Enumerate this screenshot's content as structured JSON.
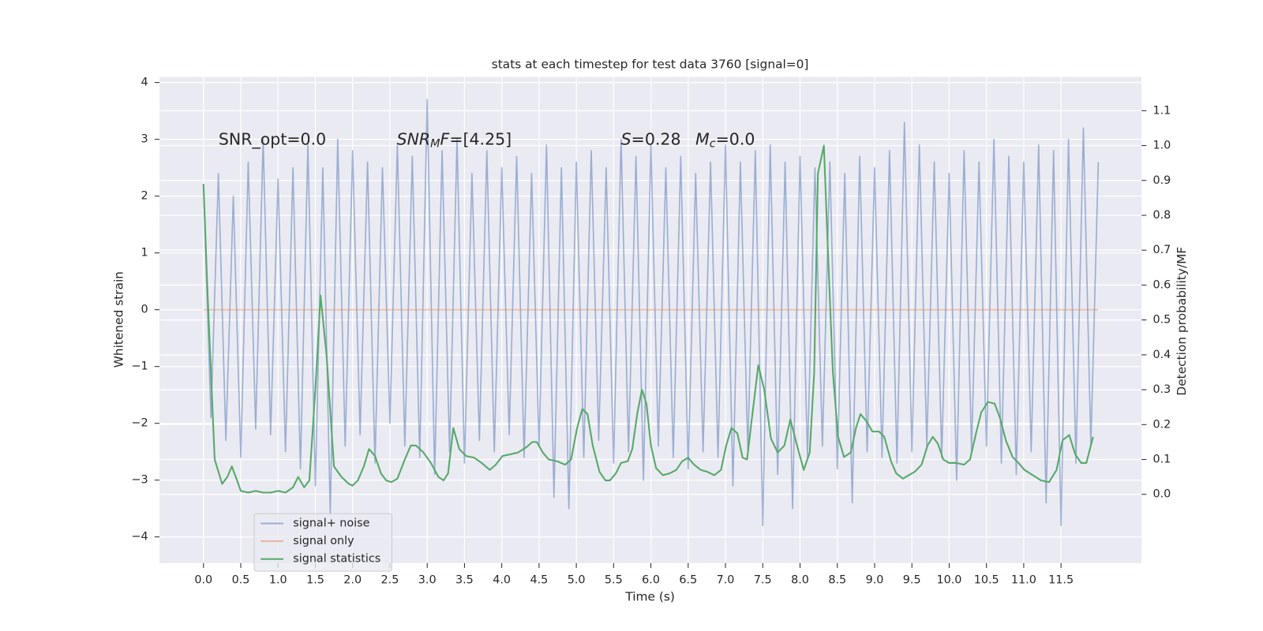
{
  "chart_data": {
    "type": "line",
    "title": "stats at each timestep for test data 3760 [signal=0]",
    "xlabel": "Time (s)",
    "ylabel": "Whitened strain",
    "y2label": "Detection probability/MF",
    "xlim": [
      -0.59,
      12.58
    ],
    "ylim": [
      -4.46,
      4.1
    ],
    "y2lim": [
      -0.197,
      1.197
    ],
    "xticks": [
      {
        "value": 0,
        "label": "0.0"
      },
      0.5,
      {
        "value": 1,
        "label": "1.0"
      },
      1.5,
      {
        "value": 2,
        "label": "2.0"
      },
      2.5,
      {
        "value": 3,
        "label": "3.0"
      },
      3.5,
      {
        "value": 4,
        "label": "4.0"
      },
      4.5,
      {
        "value": 5,
        "label": "5.0"
      },
      5.5,
      {
        "value": 6,
        "label": "6.0"
      },
      6.5,
      {
        "value": 7,
        "label": "7.0"
      },
      7.5,
      {
        "value": 8,
        "label": "8.0"
      },
      8.5,
      {
        "value": 9,
        "label": "9.0"
      },
      9.5,
      {
        "value": 10,
        "label": "10.0"
      },
      10.5,
      {
        "value": 11,
        "label": "11.0"
      },
      11.5
    ],
    "yticks": [
      {
        "value": -4,
        "label": "−4"
      },
      {
        "value": -3,
        "label": "−3"
      },
      {
        "value": -2,
        "label": "−2"
      },
      {
        "value": -1,
        "label": "−1"
      },
      0,
      1,
      2,
      3,
      4
    ],
    "y2ticks": [
      {
        "value": 0,
        "label": "0.0"
      },
      0.1,
      0.2,
      0.3,
      0.4,
      0.5,
      0.6,
      0.7,
      0.8,
      0.9,
      {
        "value": 1,
        "label": "1.0"
      },
      1.1
    ],
    "grid": true,
    "legend": "lower left",
    "annotations": [
      {
        "parts": [
          {
            "text": "SNR_opt=0.0",
            "style": "normal"
          }
        ]
      },
      {
        "parts": [
          {
            "text": "SNR",
            "style": "italic"
          },
          {
            "text": "M",
            "style": "italic-sub"
          },
          {
            "text": "F",
            "style": "italic"
          },
          {
            "text": "=[4.25]",
            "style": "normal"
          }
        ]
      },
      {
        "parts": [
          {
            "text": "S",
            "style": "italic"
          },
          {
            "text": "=0.28",
            "style": "normal"
          }
        ]
      },
      {
        "parts": [
          {
            "text": "M",
            "style": "italic"
          },
          {
            "text": "c",
            "style": "italic-sub"
          },
          {
            "text": "=0.0",
            "style": "normal"
          }
        ]
      }
    ],
    "series": [
      {
        "name": "signal+ noise",
        "color": "#4c72b0",
        "opacity": 0.5,
        "x": [
          0.0,
          0.1,
          0.2,
          0.3,
          0.4,
          0.5,
          0.6,
          0.7,
          0.8,
          0.9,
          1.0,
          1.1,
          1.2,
          1.3,
          1.4,
          1.5,
          1.6,
          1.7,
          1.8,
          1.9,
          2.0,
          2.1,
          2.2,
          2.3,
          2.4,
          2.5,
          2.6,
          2.7,
          2.8,
          2.9,
          3.0,
          3.1,
          3.2,
          3.3,
          3.4,
          3.5,
          3.6,
          3.7,
          3.8,
          3.9,
          4.0,
          4.1,
          4.2,
          4.3,
          4.4,
          4.5,
          4.6,
          4.7,
          4.8,
          4.9,
          5.0,
          5.1,
          5.2,
          5.3,
          5.4,
          5.5,
          5.6,
          5.7,
          5.8,
          5.9,
          6.0,
          6.1,
          6.2,
          6.3,
          6.4,
          6.5,
          6.6,
          6.7,
          6.8,
          6.9,
          7.0,
          7.1,
          7.2,
          7.3,
          7.4,
          7.5,
          7.6,
          7.7,
          7.8,
          7.9,
          8.0,
          8.1,
          8.2,
          8.3,
          8.4,
          8.5,
          8.6,
          8.7,
          8.8,
          8.9,
          9.0,
          9.1,
          9.2,
          9.3,
          9.4,
          9.5,
          9.6,
          9.7,
          9.8,
          9.9,
          10.0,
          10.1,
          10.2,
          10.3,
          10.4,
          10.5,
          10.6,
          10.7,
          10.8,
          10.9,
          11.0,
          11.1,
          11.2,
          11.3,
          11.4,
          11.5,
          11.6,
          11.7,
          11.8,
          11.9,
          12.0
        ],
        "values": [
          2.2,
          -1.9,
          2.4,
          -2.3,
          2.0,
          -2.6,
          2.6,
          -2.1,
          3.0,
          -2.2,
          2.3,
          -2.5,
          2.5,
          -2.8,
          2.9,
          -3.1,
          2.5,
          -3.6,
          3.0,
          -2.4,
          2.8,
          -2.2,
          2.6,
          -2.7,
          2.5,
          -2.0,
          2.9,
          -2.4,
          2.7,
          -2.6,
          3.7,
          -2.9,
          2.8,
          -2.5,
          3.0,
          -2.7,
          2.4,
          -2.3,
          2.8,
          -2.5,
          2.5,
          -2.2,
          2.7,
          -2.6,
          2.4,
          -2.4,
          2.9,
          -3.3,
          2.5,
          -3.5,
          2.6,
          -2.6,
          2.8,
          -2.3,
          2.5,
          -2.7,
          3.0,
          -2.5,
          2.7,
          -3.0,
          2.9,
          -2.4,
          2.5,
          -2.6,
          2.7,
          -2.8,
          2.4,
          -2.5,
          2.6,
          -2.6,
          2.9,
          -3.1,
          2.6,
          -2.5,
          2.8,
          -3.8,
          2.9,
          -2.9,
          2.6,
          -3.5,
          2.7,
          -2.6,
          2.5,
          -2.4,
          2.6,
          -2.8,
          2.4,
          -3.4,
          2.7,
          -2.5,
          2.5,
          -2.6,
          2.8,
          -2.7,
          3.3,
          -2.5,
          2.9,
          -2.4,
          2.6,
          -2.6,
          2.4,
          -3.0,
          2.8,
          -2.5,
          2.6,
          -2.4,
          3.0,
          -2.7,
          2.7,
          -2.9,
          2.6,
          -2.5,
          2.9,
          -3.4,
          2.8,
          -3.8,
          3.0,
          -2.7,
          3.2,
          -2.4,
          2.6
        ]
      },
      {
        "name": "signal only",
        "color": "#dd8452",
        "opacity": 0.5,
        "x": [
          0.0,
          12.0
        ],
        "values": [
          0,
          0
        ]
      },
      {
        "name": "signal statistics",
        "color": "#55a868",
        "opacity": 1,
        "axis": "y2",
        "x": [
          0.0,
          0.05,
          0.1,
          0.15,
          0.25,
          0.32,
          0.38,
          0.45,
          0.5,
          0.6,
          0.7,
          0.8,
          0.9,
          1.0,
          1.1,
          1.2,
          1.27,
          1.35,
          1.42,
          1.5,
          1.57,
          1.65,
          1.75,
          1.85,
          1.95,
          2.0,
          2.07,
          2.15,
          2.22,
          2.3,
          2.38,
          2.45,
          2.52,
          2.6,
          2.7,
          2.78,
          2.85,
          2.95,
          3.05,
          3.15,
          3.22,
          3.28,
          3.35,
          3.43,
          3.52,
          3.63,
          3.73,
          3.84,
          3.92,
          4.01,
          4.12,
          4.22,
          4.33,
          4.41,
          4.47,
          4.55,
          4.63,
          4.74,
          4.85,
          4.93,
          5.01,
          5.08,
          5.15,
          5.22,
          5.31,
          5.39,
          5.45,
          5.53,
          5.6,
          5.69,
          5.75,
          5.82,
          5.88,
          5.94,
          6.0,
          6.07,
          6.16,
          6.25,
          6.34,
          6.42,
          6.5,
          6.58,
          6.67,
          6.75,
          6.85,
          6.94,
          7.01,
          7.08,
          7.16,
          7.23,
          7.29,
          7.35,
          7.44,
          7.52,
          7.61,
          7.7,
          7.79,
          7.87,
          7.96,
          8.05,
          8.13,
          8.19,
          8.24,
          8.32,
          8.37,
          8.44,
          8.51,
          8.59,
          8.68,
          8.75,
          8.81,
          8.89,
          8.97,
          9.06,
          9.13,
          9.22,
          9.29,
          9.38,
          9.46,
          9.54,
          9.63,
          9.71,
          9.78,
          9.85,
          9.92,
          10.0,
          10.09,
          10.2,
          10.28,
          10.36,
          10.43,
          10.52,
          10.61,
          10.68,
          10.76,
          10.85,
          10.93,
          11.01,
          11.12,
          11.23,
          11.34,
          11.44,
          11.52,
          11.61,
          11.69,
          11.77,
          11.84,
          11.93
        ],
        "values": [
          0.89,
          0.6,
          0.35,
          0.1,
          0.03,
          0.05,
          0.08,
          0.04,
          0.01,
          0.005,
          0.01,
          0.005,
          0.005,
          0.01,
          0.005,
          0.02,
          0.05,
          0.02,
          0.04,
          0.3,
          0.57,
          0.4,
          0.08,
          0.05,
          0.03,
          0.025,
          0.04,
          0.08,
          0.13,
          0.11,
          0.06,
          0.04,
          0.035,
          0.045,
          0.1,
          0.14,
          0.14,
          0.12,
          0.09,
          0.05,
          0.04,
          0.06,
          0.19,
          0.13,
          0.11,
          0.105,
          0.09,
          0.07,
          0.085,
          0.11,
          0.115,
          0.12,
          0.135,
          0.15,
          0.15,
          0.12,
          0.1,
          0.095,
          0.085,
          0.1,
          0.19,
          0.245,
          0.23,
          0.14,
          0.065,
          0.04,
          0.04,
          0.06,
          0.09,
          0.095,
          0.13,
          0.235,
          0.3,
          0.26,
          0.14,
          0.075,
          0.055,
          0.06,
          0.07,
          0.095,
          0.105,
          0.085,
          0.07,
          0.065,
          0.055,
          0.07,
          0.14,
          0.19,
          0.175,
          0.105,
          0.1,
          0.21,
          0.37,
          0.3,
          0.16,
          0.12,
          0.14,
          0.215,
          0.14,
          0.07,
          0.12,
          0.35,
          0.92,
          1.0,
          0.72,
          0.35,
          0.165,
          0.107,
          0.12,
          0.19,
          0.23,
          0.21,
          0.18,
          0.18,
          0.165,
          0.095,
          0.06,
          0.045,
          0.055,
          0.065,
          0.085,
          0.14,
          0.165,
          0.145,
          0.1,
          0.09,
          0.09,
          0.085,
          0.1,
          0.175,
          0.235,
          0.265,
          0.26,
          0.22,
          0.155,
          0.107,
          0.09,
          0.07,
          0.055,
          0.04,
          0.035,
          0.07,
          0.155,
          0.17,
          0.115,
          0.09,
          0.09,
          0.165
        ]
      }
    ]
  }
}
